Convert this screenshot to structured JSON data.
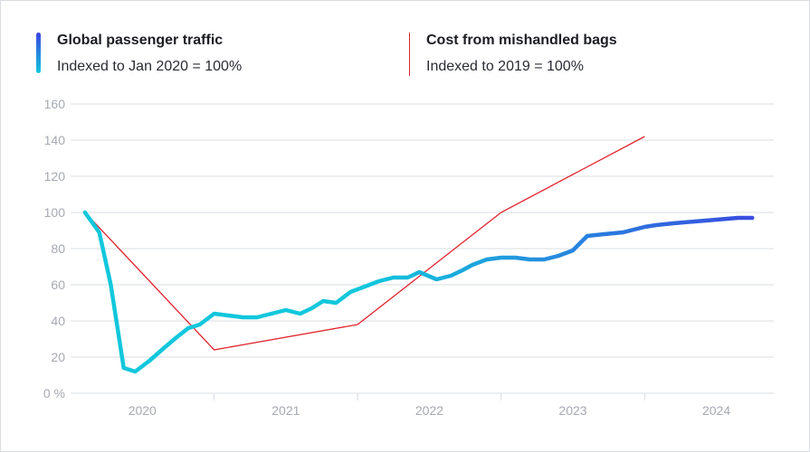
{
  "legend": {
    "passenger": {
      "title": "Global passenger traffic",
      "subtitle": "Indexed to Jan 2020 = 100%"
    },
    "bags": {
      "title": "Cost from mishandled bags",
      "subtitle": "Indexed to 2019 = 100%"
    }
  },
  "colors": {
    "passenger_start": "#12c7dc",
    "passenger_end": "#3b45e0",
    "bags": "#e0242e",
    "grid": "#d9dce2",
    "tick": "#a6a9b3"
  },
  "chart_data": {
    "type": "line",
    "ylim": [
      0,
      160
    ],
    "yticks": [
      0,
      20,
      40,
      60,
      80,
      100,
      120,
      140,
      160
    ],
    "ytick_labels": [
      "0 %",
      "20",
      "40",
      "60",
      "80",
      "100",
      "120",
      "140",
      "160"
    ],
    "xlim": [
      2019.9,
      2024.8
    ],
    "xtick_labels": [
      "2020",
      "2021",
      "2022",
      "2023",
      "2024"
    ],
    "grid": true,
    "series": [
      {
        "name": "Global passenger traffic",
        "x": [
          2020.0,
          2020.1,
          2020.18,
          2020.27,
          2020.35,
          2020.45,
          2020.55,
          2020.64,
          2020.72,
          2020.8,
          2020.9,
          2021.0,
          2021.1,
          2021.2,
          2021.3,
          2021.4,
          2021.5,
          2021.58,
          2021.66,
          2021.75,
          2021.85,
          2021.95,
          2022.05,
          2022.15,
          2022.25,
          2022.33,
          2022.45,
          2022.55,
          2022.63,
          2022.7,
          2022.8,
          2022.9,
          2023.0,
          2023.1,
          2023.2,
          2023.3,
          2023.4,
          2023.5,
          2023.62,
          2023.75,
          2023.9,
          2023.98,
          2024.1,
          2024.25,
          2024.4,
          2024.55,
          2024.65
        ],
        "values": [
          100,
          89,
          60,
          14,
          12,
          18,
          25,
          31,
          36,
          38,
          44,
          43,
          42,
          42,
          44,
          46,
          44,
          47,
          51,
          50,
          56,
          59,
          62,
          64,
          64,
          67,
          63,
          65,
          68,
          71,
          74,
          75,
          75,
          74,
          74,
          76,
          79,
          87,
          88,
          89,
          92,
          93,
          94,
          95,
          96,
          97,
          97
        ]
      },
      {
        "name": "Cost from mishandled bags",
        "x": [
          2020.0,
          2020.9,
          2021.9,
          2022.9,
          2023.9
        ],
        "values": [
          100,
          24,
          38,
          100,
          142
        ]
      }
    ]
  }
}
